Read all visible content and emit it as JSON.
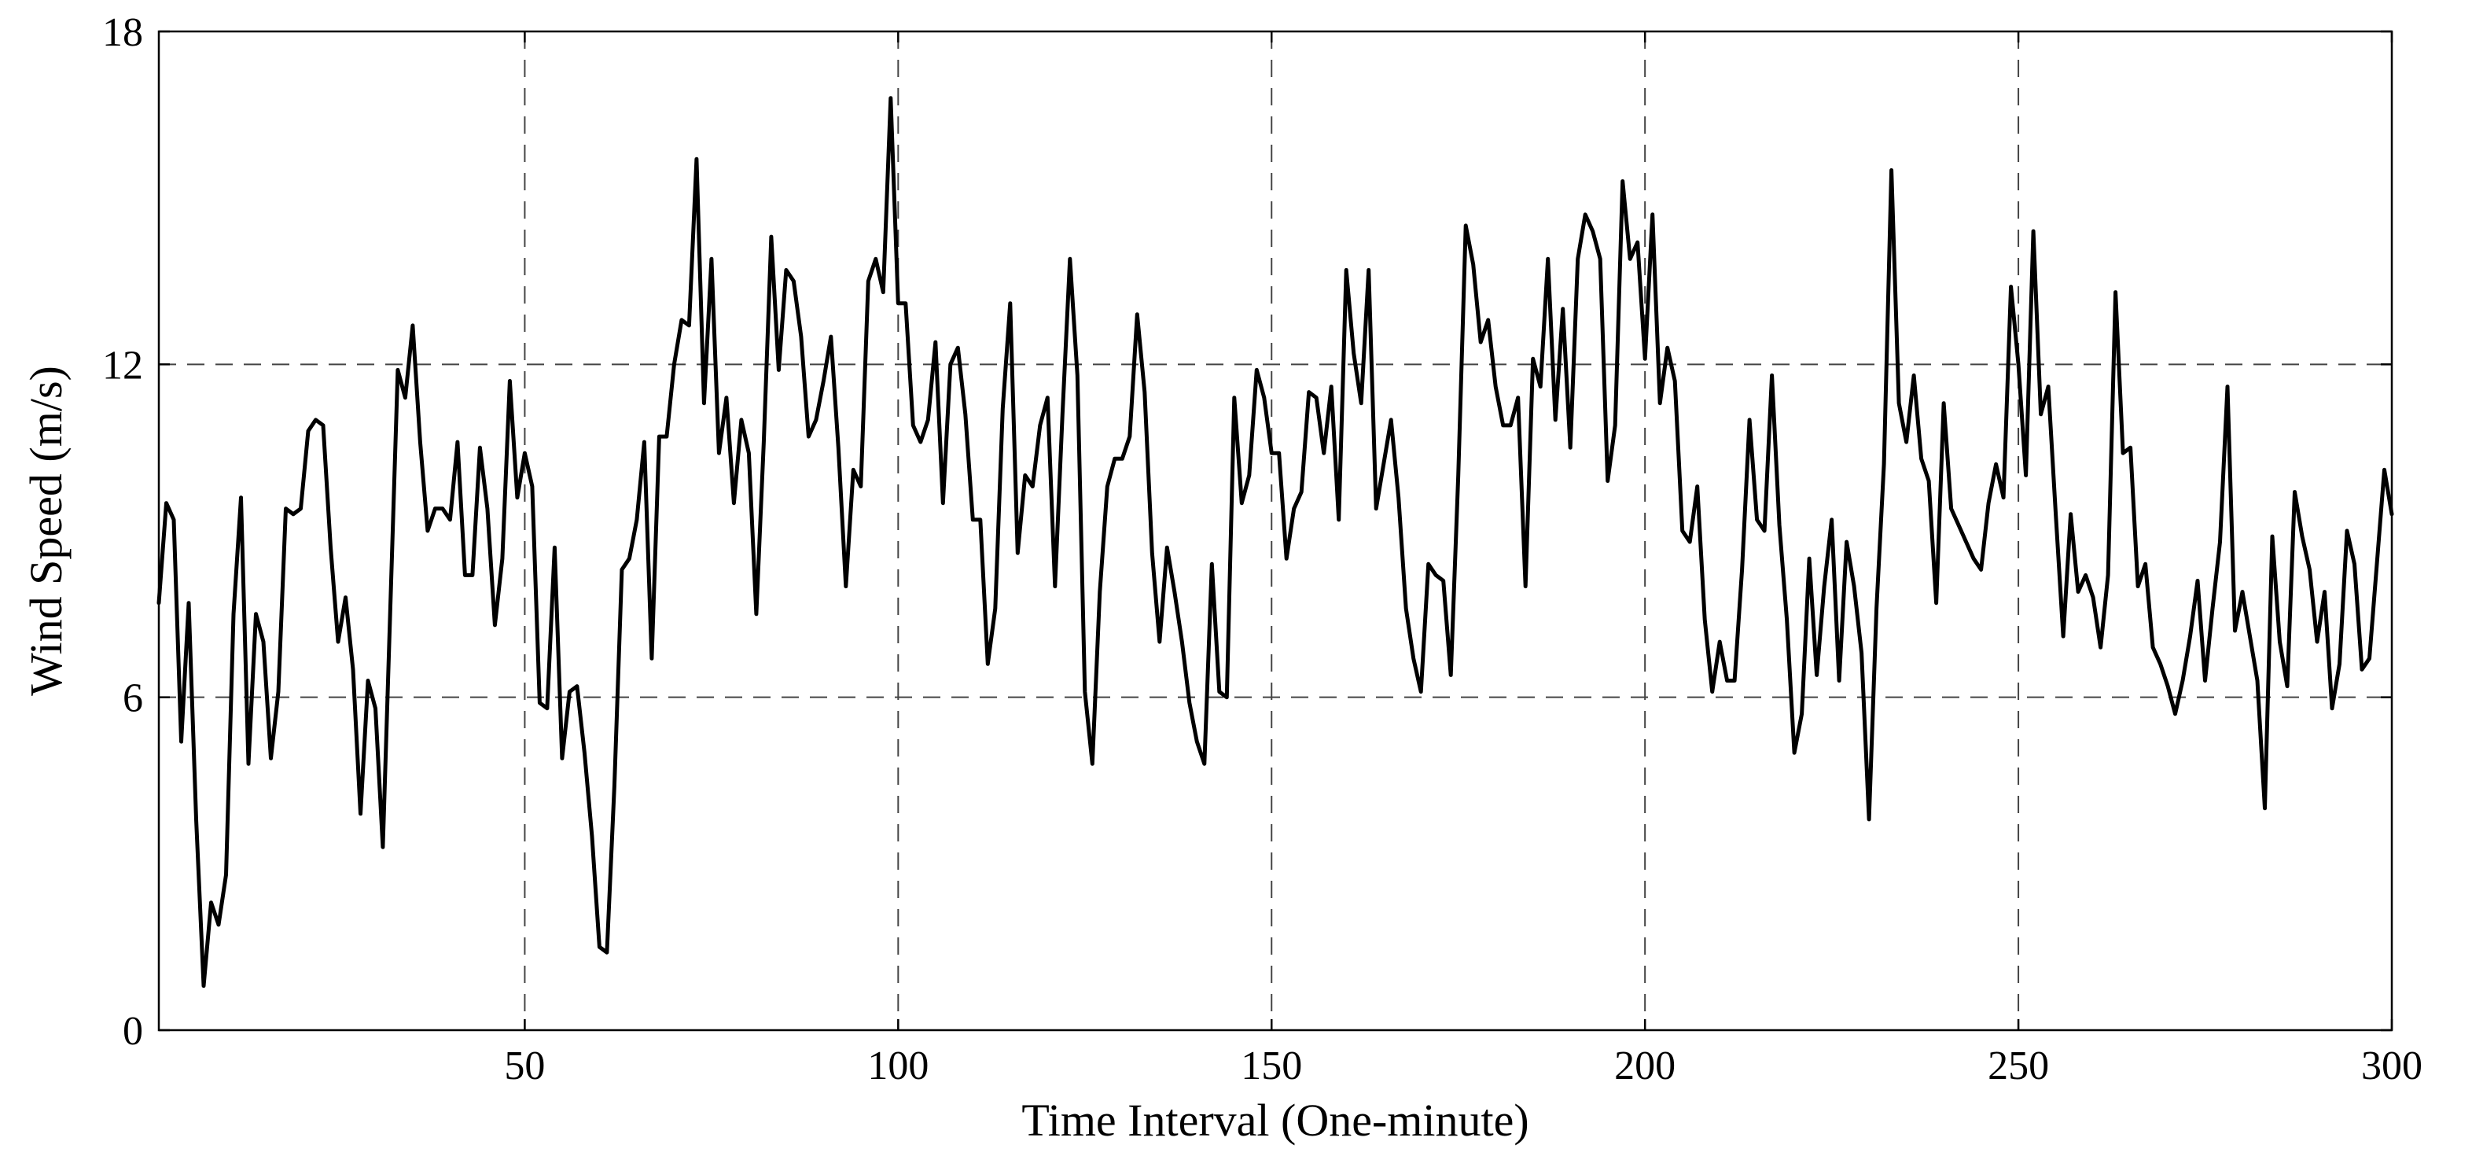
{
  "chart_data": {
    "type": "line",
    "title": "",
    "xlabel": "Time Interval (One-minute)",
    "ylabel": "Wind Speed (m/s)",
    "xlim": [
      1,
      300
    ],
    "ylim": [
      0,
      18
    ],
    "xticks": [
      50,
      100,
      150,
      200,
      250,
      300
    ],
    "yticks": [
      0,
      6,
      12,
      18
    ],
    "xtick_labels": [
      "50",
      "100",
      "150",
      "200",
      "250",
      "300"
    ],
    "ytick_labels": [
      "0",
      "6",
      "12",
      "18"
    ],
    "grid": "dashed, major ticks",
    "legend": "none",
    "colors": {
      "series": "#000000",
      "grid": "#444444",
      "background": "#ffffff"
    },
    "series": [
      {
        "x_start": 1,
        "x_step": 1,
        "values": [
          7.7,
          9.5,
          9.2,
          5.2,
          7.7,
          3.8,
          0.8,
          2.3,
          1.9,
          2.8,
          7.5,
          9.6,
          4.8,
          7.5,
          7.0,
          4.9,
          6.1,
          9.4,
          9.3,
          9.4,
          10.8,
          11.0,
          10.9,
          8.7,
          7.0,
          7.8,
          6.5,
          3.9,
          6.3,
          5.8,
          3.3,
          7.6,
          11.9,
          11.4,
          12.7,
          10.6,
          9.0,
          9.4,
          9.4,
          9.2,
          10.6,
          8.2,
          8.2,
          10.5,
          9.4,
          7.3,
          8.5,
          11.7,
          9.6,
          10.4,
          9.8,
          5.9,
          5.8,
          8.7,
          4.9,
          6.1,
          6.2,
          5.0,
          3.5,
          1.5,
          1.4,
          4.4,
          8.3,
          8.5,
          9.2,
          10.6,
          6.7,
          10.7,
          10.7,
          12.0,
          12.8,
          12.7,
          15.7,
          11.3,
          13.9,
          10.4,
          11.4,
          9.5,
          11.0,
          10.4,
          7.5,
          10.6,
          14.3,
          11.9,
          13.7,
          13.5,
          12.5,
          10.7,
          11.0,
          11.7,
          12.5,
          10.5,
          8.0,
          10.1,
          9.8,
          13.5,
          13.9,
          13.3,
          16.8,
          13.1,
          13.1,
          10.9,
          10.6,
          11.0,
          12.4,
          9.5,
          12.0,
          12.3,
          11.1,
          9.2,
          9.2,
          6.6,
          7.6,
          11.2,
          13.1,
          8.6,
          10.0,
          9.8,
          10.9,
          11.4,
          8.0,
          11.1,
          13.9,
          11.8,
          6.1,
          4.8,
          7.9,
          9.8,
          10.3,
          10.3,
          10.7,
          12.9,
          11.5,
          8.6,
          7.0,
          8.7,
          7.9,
          7.0,
          5.9,
          5.2,
          4.8,
          8.4,
          6.1,
          6.0,
          11.4,
          9.5,
          10.0,
          11.9,
          11.4,
          10.4,
          10.4,
          8.5,
          9.4,
          9.7,
          11.5,
          11.4,
          10.4,
          11.6,
          9.2,
          13.7,
          12.2,
          11.3,
          13.7,
          9.4,
          10.2,
          11.0,
          9.6,
          7.6,
          6.7,
          6.1,
          8.4,
          8.2,
          8.1,
          6.4,
          10.0,
          14.5,
          13.8,
          12.4,
          12.8,
          11.6,
          10.9,
          10.9,
          11.4,
          8.0,
          12.1,
          11.6,
          13.9,
          11.0,
          13.0,
          10.5,
          13.9,
          14.7,
          14.4,
          13.9,
          9.9,
          10.9,
          15.3,
          13.9,
          14.2,
          12.1,
          14.7,
          11.3,
          12.3,
          11.7,
          9.0,
          8.8,
          9.8,
          7.4,
          6.1,
          7.0,
          6.3,
          6.3,
          8.3,
          11.0,
          9.2,
          9.0,
          11.8,
          9.1,
          7.4,
          5.0,
          5.7,
          8.5,
          6.4,
          8.0,
          9.2,
          6.3,
          8.8,
          8.0,
          6.8,
          3.8,
          7.6,
          10.2,
          15.5,
          11.3,
          10.6,
          11.8,
          10.3,
          9.9,
          7.7,
          11.3,
          9.4,
          9.1,
          8.8,
          8.5,
          8.3,
          9.5,
          10.2,
          9.6,
          13.4,
          12.0,
          10.0,
          14.4,
          11.1,
          11.6,
          9.3,
          7.1,
          9.3,
          7.9,
          8.2,
          7.8,
          6.9,
          8.2,
          13.3,
          10.4,
          10.5,
          8.0,
          8.4,
          6.9,
          6.6,
          6.2,
          5.7,
          6.3,
          7.1,
          8.1,
          6.3,
          7.6,
          8.8,
          11.6,
          7.2,
          7.9,
          7.1,
          6.3,
          4.0,
          8.9,
          7.0,
          6.2,
          9.7,
          8.9,
          8.3,
          7.0,
          7.9,
          5.8,
          6.6,
          9.0,
          8.4,
          6.5,
          6.7,
          8.4,
          10.1,
          9.3
        ]
      }
    ]
  }
}
